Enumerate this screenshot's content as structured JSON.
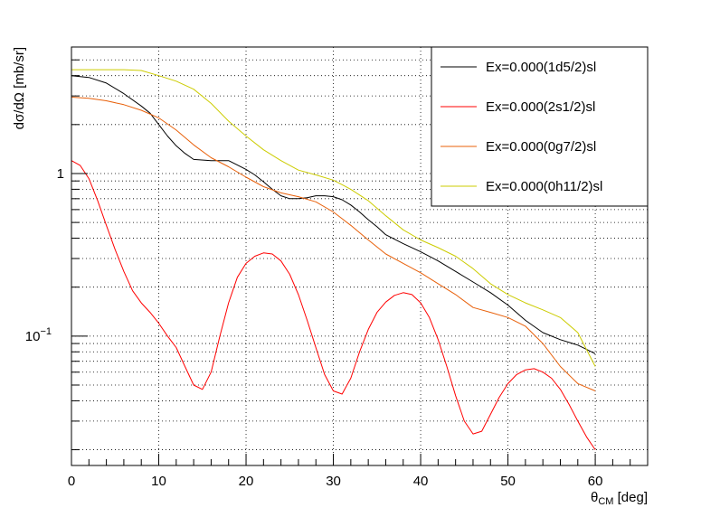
{
  "chart_data": {
    "type": "line",
    "title": "",
    "xlabel": "θ",
    "xlabel_sub": "CM",
    "xlabel_unit": " [deg]",
    "ylabel": "dσ/dΩ [mb/sr]",
    "xlim": [
      0,
      66
    ],
    "ylim": [
      0.016,
      6.0
    ],
    "yscale": "log",
    "grid": true,
    "legend_position": "top-right",
    "x_ticks": [
      "0",
      "10",
      "20",
      "30",
      "40",
      "50",
      "60"
    ],
    "y_ticks": [
      {
        "value": 1,
        "label": "1"
      },
      {
        "value": 0.1,
        "label": "10",
        "exp": "−1"
      }
    ],
    "series": [
      {
        "name": "Ex=0.000(1d5/2)sl",
        "color": "#000000",
        "x": [
          0,
          2,
          4,
          6,
          8,
          9,
          10,
          11,
          12,
          13,
          14,
          16,
          18,
          20,
          21,
          22,
          23,
          24,
          25,
          26,
          27,
          28,
          29,
          30,
          31,
          32,
          33,
          34,
          35,
          36,
          38,
          40,
          42,
          44,
          46,
          48,
          50,
          52,
          54,
          56,
          58,
          60
        ],
        "y": [
          4.0,
          3.9,
          3.6,
          3.1,
          2.6,
          2.35,
          2.0,
          1.7,
          1.48,
          1.33,
          1.22,
          1.2,
          1.2,
          1.06,
          0.98,
          0.89,
          0.8,
          0.73,
          0.7,
          0.7,
          0.71,
          0.73,
          0.73,
          0.72,
          0.69,
          0.64,
          0.58,
          0.52,
          0.47,
          0.42,
          0.37,
          0.33,
          0.29,
          0.25,
          0.215,
          0.185,
          0.155,
          0.125,
          0.105,
          0.095,
          0.088,
          0.078
        ]
      },
      {
        "name": "Ex=0.000(2s1/2)sl",
        "color": "#ff0000",
        "x": [
          0,
          1,
          2,
          3,
          4,
          5,
          6,
          7,
          8,
          9,
          10,
          11,
          12,
          13,
          14,
          15,
          16,
          17,
          18,
          19,
          20,
          21,
          22,
          23,
          24,
          25,
          26,
          27,
          28,
          29,
          30,
          31,
          32,
          33,
          34,
          35,
          36,
          37,
          38,
          39,
          40,
          41,
          42,
          43,
          44,
          45,
          46,
          47,
          48,
          49,
          50,
          51,
          52,
          53,
          54,
          55,
          56,
          57,
          58,
          59,
          60
        ],
        "y": [
          1.2,
          1.12,
          0.93,
          0.68,
          0.48,
          0.34,
          0.25,
          0.19,
          0.16,
          0.14,
          0.12,
          0.1,
          0.085,
          0.065,
          0.05,
          0.047,
          0.06,
          0.1,
          0.16,
          0.23,
          0.28,
          0.31,
          0.325,
          0.32,
          0.29,
          0.24,
          0.18,
          0.125,
          0.085,
          0.058,
          0.046,
          0.044,
          0.055,
          0.08,
          0.11,
          0.14,
          0.162,
          0.178,
          0.185,
          0.18,
          0.16,
          0.13,
          0.095,
          0.065,
          0.043,
          0.03,
          0.025,
          0.026,
          0.033,
          0.042,
          0.051,
          0.058,
          0.062,
          0.063,
          0.06,
          0.055,
          0.047,
          0.038,
          0.03,
          0.024,
          0.02
        ]
      },
      {
        "name": "Ex=0.000(0g7/2)sl",
        "color": "#e8600a",
        "x": [
          0,
          2,
          4,
          6,
          8,
          10,
          12,
          14,
          16,
          18,
          20,
          22,
          24,
          26,
          28,
          30,
          32,
          34,
          36,
          38,
          40,
          42,
          44,
          46,
          48,
          50,
          52,
          54,
          56,
          58,
          60
        ],
        "y": [
          2.95,
          2.9,
          2.8,
          2.65,
          2.45,
          2.2,
          1.85,
          1.5,
          1.25,
          1.1,
          0.95,
          0.83,
          0.76,
          0.72,
          0.67,
          0.58,
          0.48,
          0.39,
          0.32,
          0.28,
          0.245,
          0.21,
          0.18,
          0.15,
          0.14,
          0.13,
          0.115,
          0.09,
          0.065,
          0.051,
          0.046
        ]
      },
      {
        "name": "Ex=0.000(0h11/2)sl",
        "color": "#cccc00",
        "x": [
          0,
          2,
          4,
          6,
          8,
          10,
          12,
          14,
          16,
          18,
          20,
          22,
          24,
          26,
          28,
          30,
          32,
          34,
          36,
          38,
          40,
          42,
          44,
          46,
          48,
          50,
          52,
          54,
          56,
          58,
          60
        ],
        "y": [
          4.35,
          4.35,
          4.35,
          4.35,
          4.3,
          4.0,
          3.7,
          3.3,
          2.7,
          2.1,
          1.7,
          1.4,
          1.2,
          1.05,
          0.98,
          0.91,
          0.8,
          0.68,
          0.55,
          0.45,
          0.39,
          0.35,
          0.31,
          0.26,
          0.21,
          0.18,
          0.16,
          0.145,
          0.13,
          0.105,
          0.065
        ]
      }
    ]
  }
}
